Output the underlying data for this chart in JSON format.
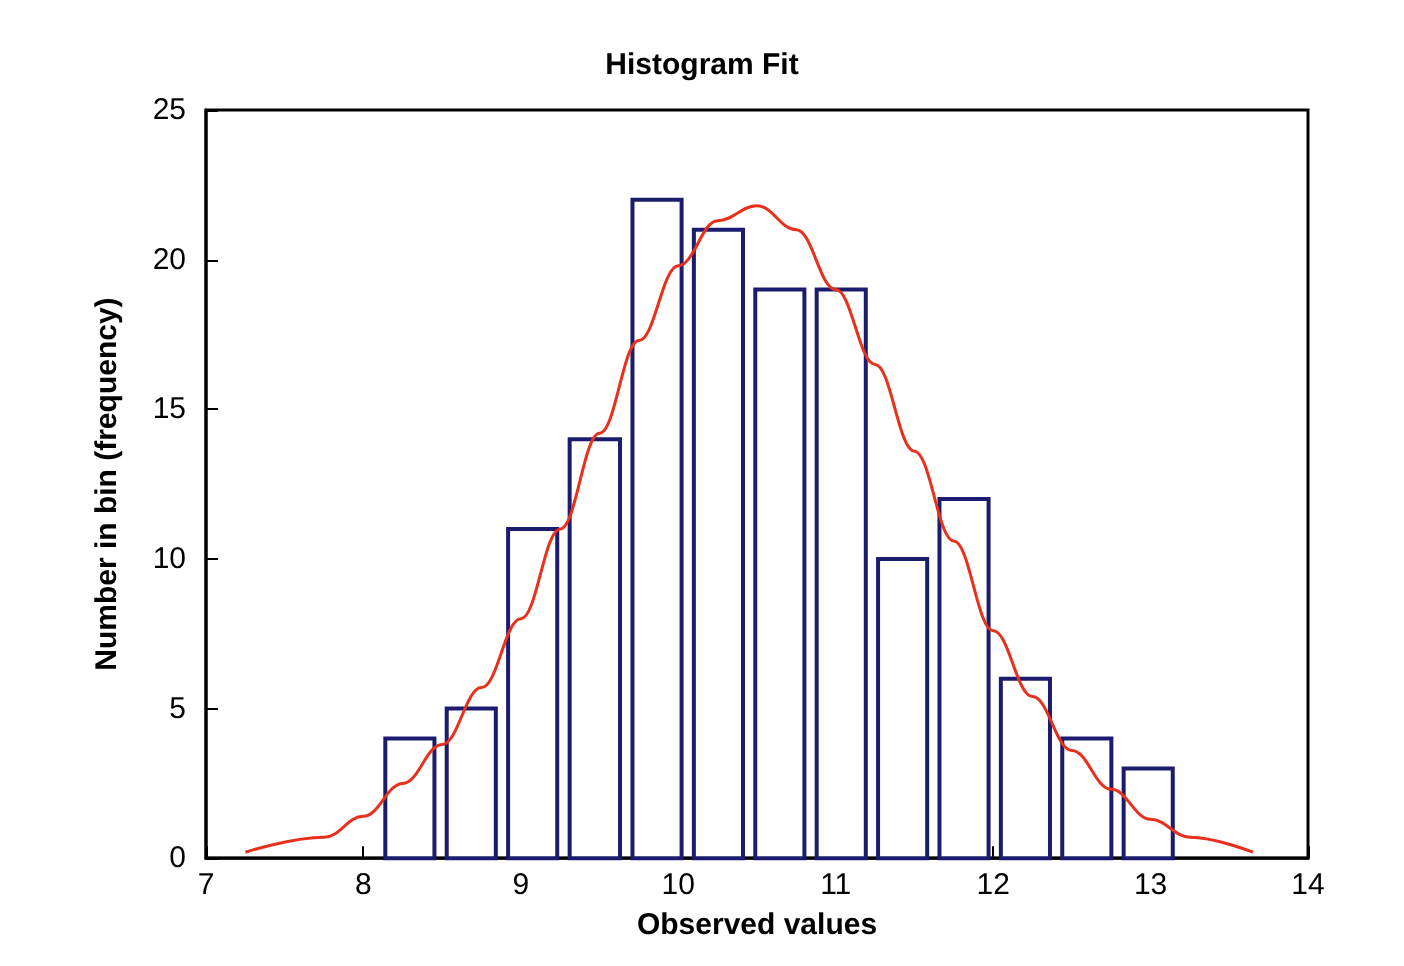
{
  "chart_data": {
    "type": "histogram",
    "title": "Histogram Fit",
    "xlabel": "Observed values",
    "ylabel": "Number in bin (frequency)",
    "bins": [
      8.1,
      8.49,
      8.88,
      9.27,
      9.67,
      10.06,
      10.45,
      10.84,
      11.23,
      11.62,
      12.01,
      12.4,
      12.79,
      13.18
    ],
    "values": [
      4,
      5,
      11,
      14,
      22,
      21,
      19,
      19,
      10,
      12,
      6,
      4,
      3
    ],
    "color": "#1c1c6e",
    "series": [
      {
        "type": "line",
        "color": "#e8301c",
        "x": [
          7.25,
          7.75,
          8.0,
          8.25,
          8.5,
          8.75,
          9.0,
          9.25,
          9.5,
          9.75,
          10.0,
          10.25,
          10.5,
          10.75,
          11.0,
          11.25,
          11.5,
          11.75,
          12.0,
          12.25,
          12.5,
          12.75,
          13.0,
          13.25,
          13.65
        ],
        "values": [
          0.2,
          0.7,
          1.4,
          2.5,
          3.8,
          5.7,
          8,
          11.0,
          14.2,
          17.3,
          19.8,
          21.3,
          21.8,
          21.0,
          19.0,
          16.5,
          13.6,
          10.6,
          7.6,
          5.4,
          3.6,
          2.3,
          1.3,
          0.7,
          0.2
        ]
      }
    ],
    "xlim": [
      7,
      14
    ],
    "xticks": [
      7,
      8,
      9,
      10,
      11,
      12,
      13,
      14
    ],
    "ylim": [
      0,
      25
    ],
    "yticks": [
      0,
      5,
      10,
      15,
      20,
      25
    ],
    "grid": false,
    "marker": "none",
    "line_style": "solid"
  }
}
